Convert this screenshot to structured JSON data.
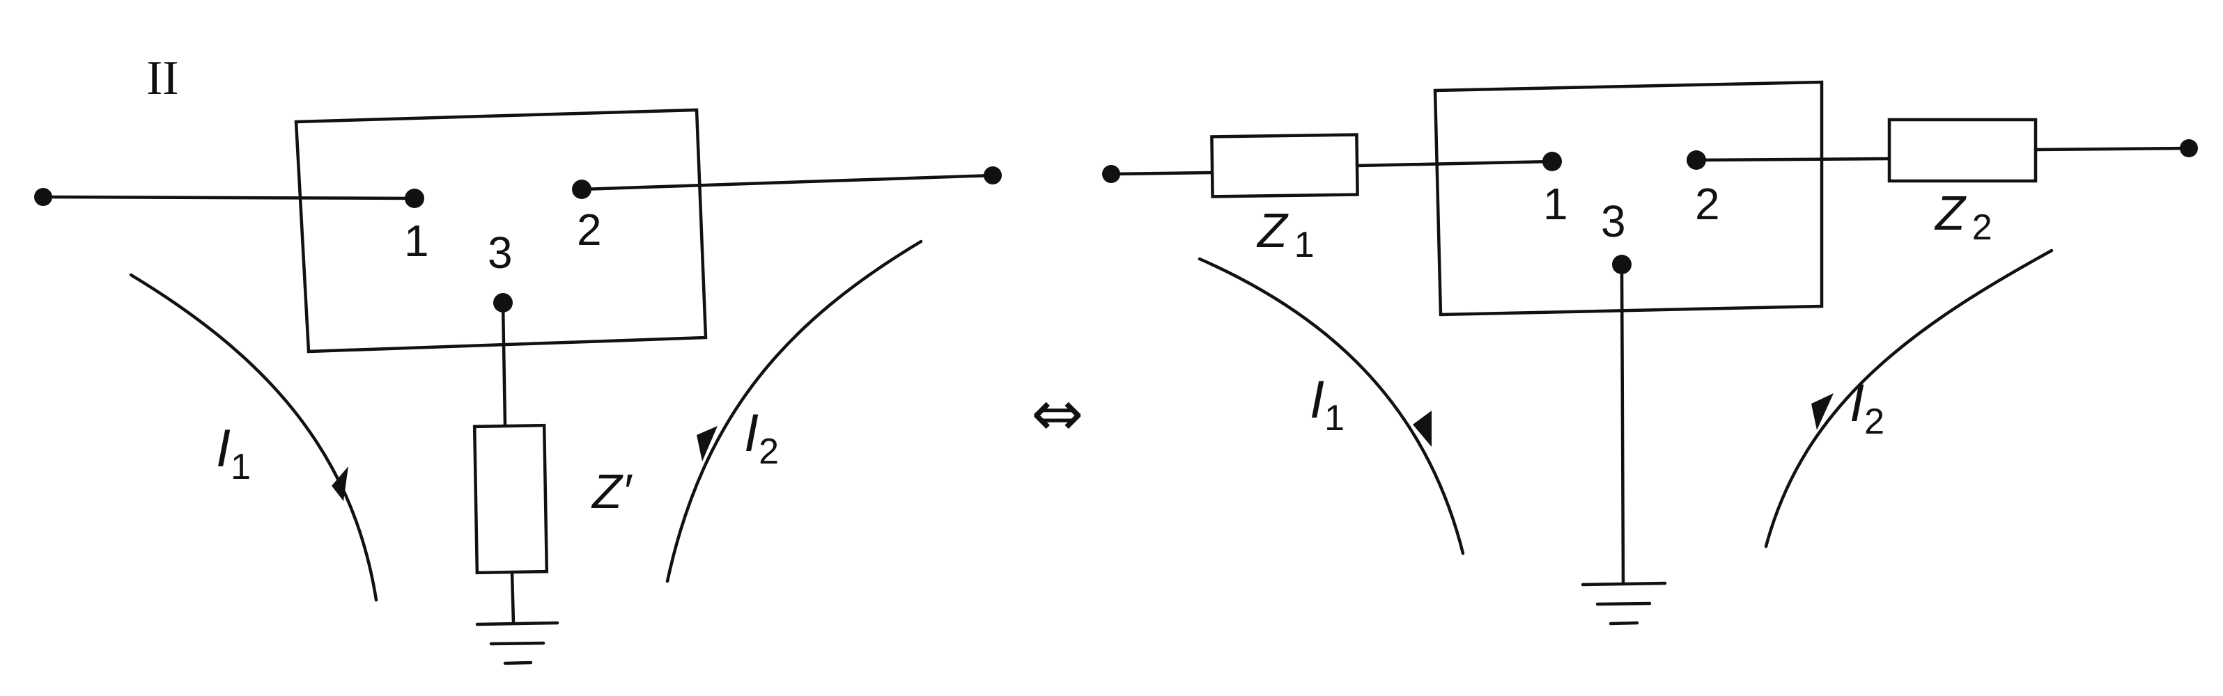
{
  "figure_label": "II",
  "equivalence_symbol": "⇔",
  "left_circuit": {
    "terminals": [
      "1",
      "2",
      "3"
    ],
    "current_1": {
      "symbol": "I",
      "subscript": "1"
    },
    "current_2": {
      "symbol": "I",
      "subscript": "2"
    },
    "impedance": {
      "symbol": "Z",
      "suffix": "′"
    }
  },
  "right_circuit": {
    "terminals": [
      "1",
      "2",
      "3"
    ],
    "current_1": {
      "symbol": "I",
      "subscript": "1"
    },
    "current_2": {
      "symbol": "I",
      "subscript": "2"
    },
    "impedance_1": {
      "symbol": "Z",
      "subscript": "1"
    },
    "impedance_2": {
      "symbol": "Z",
      "subscript": "2"
    }
  },
  "colors": {
    "ink": "#111111",
    "background": "#ffffff"
  }
}
